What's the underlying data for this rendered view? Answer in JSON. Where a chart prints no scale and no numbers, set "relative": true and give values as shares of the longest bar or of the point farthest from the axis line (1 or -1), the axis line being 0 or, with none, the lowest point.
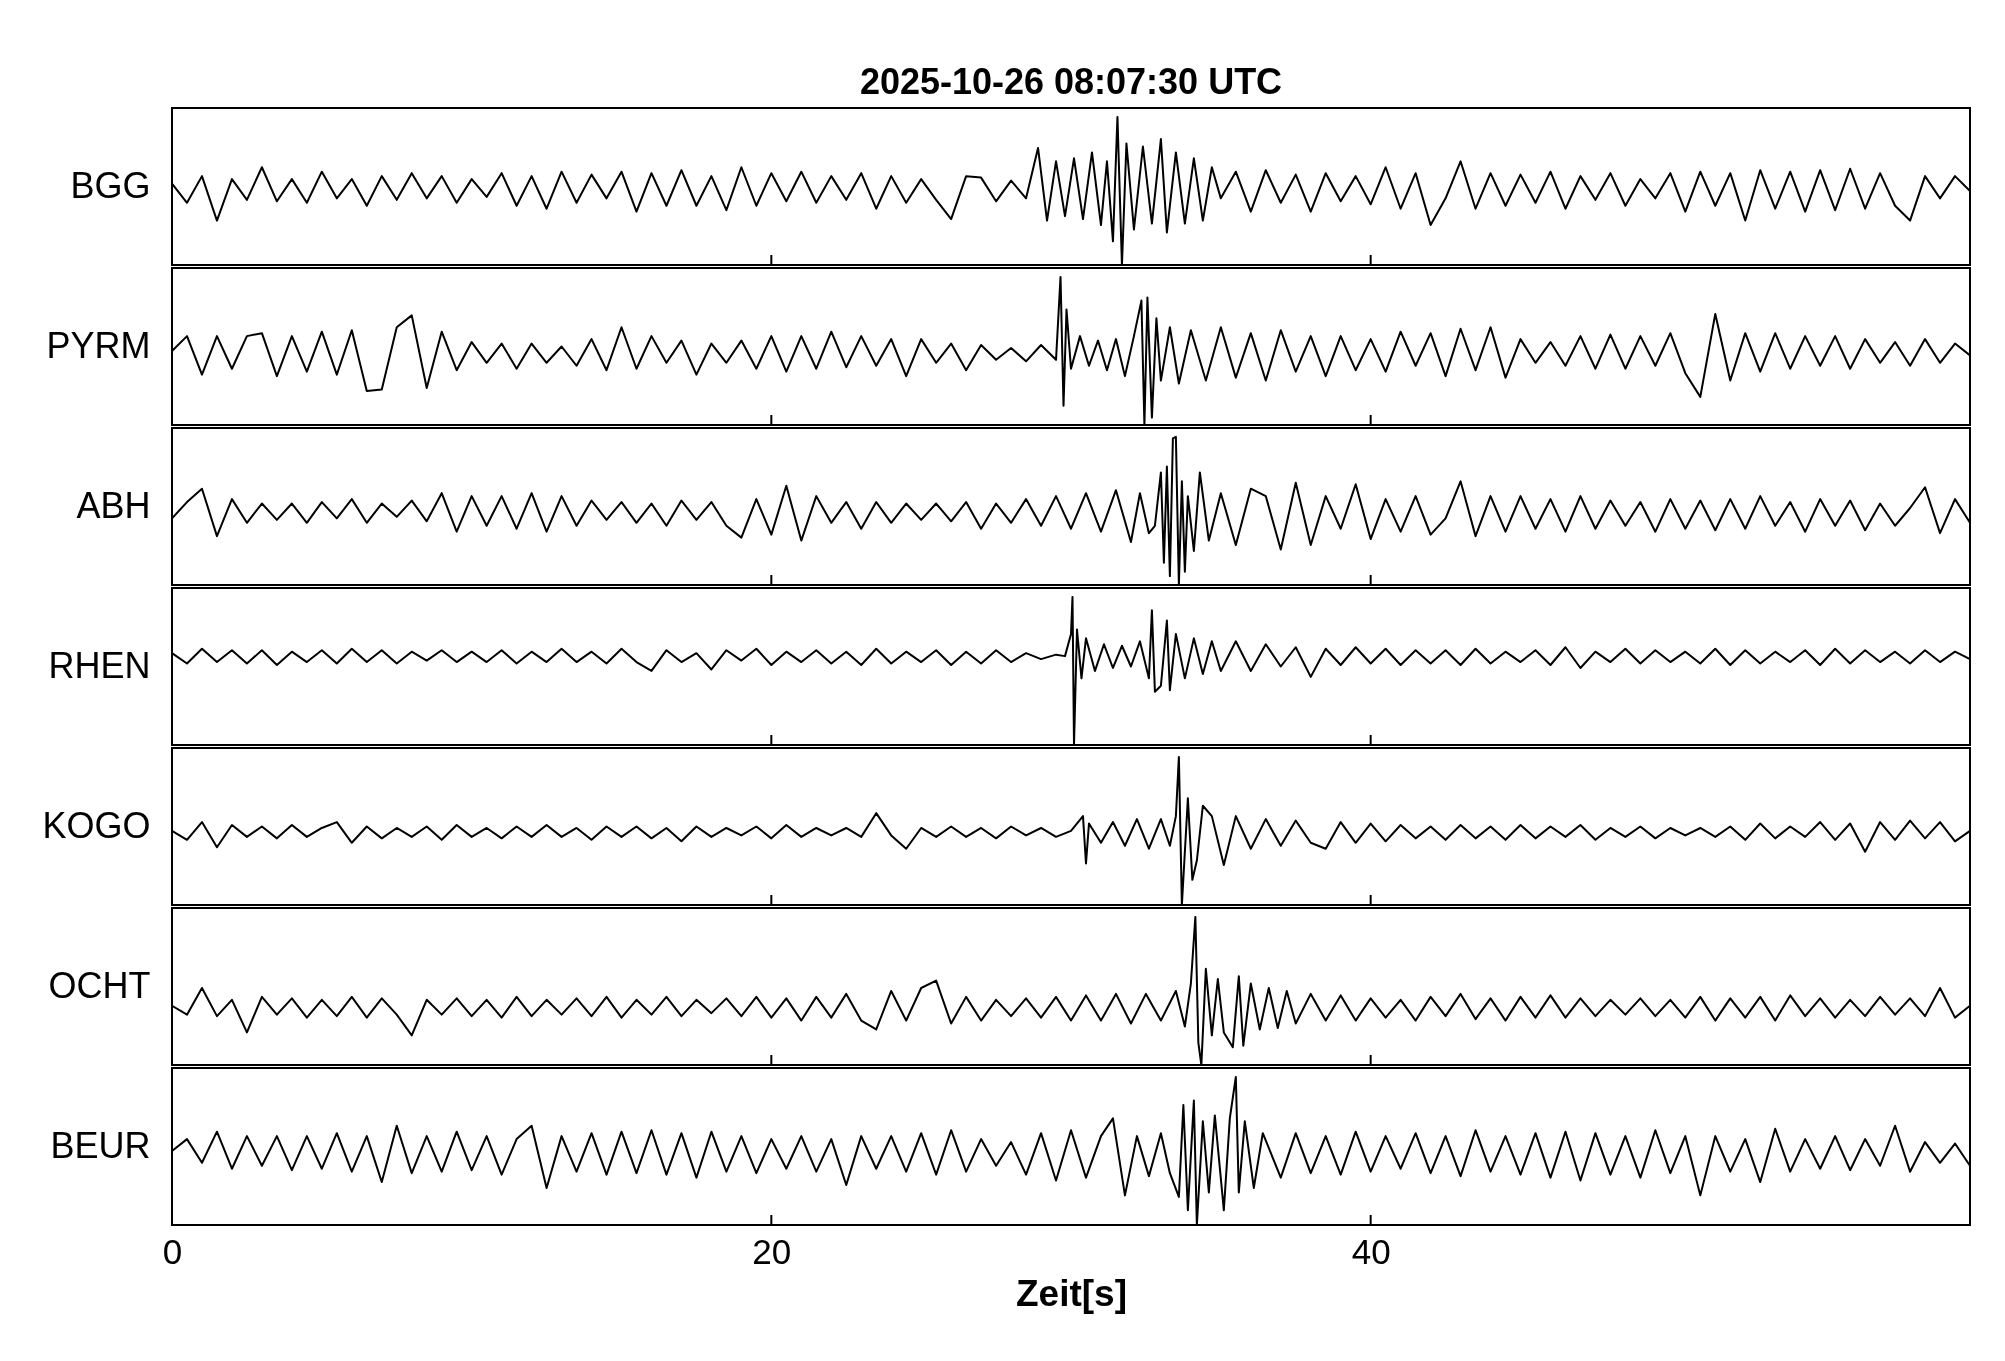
{
  "chart_data": [
    {
      "type": "line",
      "title": "2025-10-26  08:07:30 UTC",
      "ylabel": "BGG",
      "relative": true,
      "color": "#000000",
      "xlim": [
        0,
        60
      ],
      "xticks": [
        0,
        20,
        40
      ],
      "tick_labels": false,
      "x": [
        0,
        0.5,
        1,
        1.5,
        2,
        2.5,
        3,
        3.5,
        4,
        4.5,
        5,
        5.5,
        6,
        6.5,
        7,
        7.5,
        8,
        8.5,
        9,
        9.5,
        10,
        10.5,
        11,
        11.5,
        12,
        12.5,
        13,
        13.5,
        14,
        14.5,
        15,
        15.5,
        16,
        16.5,
        17,
        17.5,
        18,
        18.5,
        19,
        19.5,
        20,
        20.5,
        21,
        21.5,
        22,
        22.5,
        23,
        23.5,
        24,
        24.5,
        25,
        25.5,
        26,
        26.5,
        27,
        27.5,
        28,
        28.5,
        28.9,
        29.2,
        29.5,
        29.8,
        30.1,
        30.4,
        30.7,
        31,
        31.2,
        31.4,
        31.55,
        31.7,
        31.85,
        32.1,
        32.4,
        32.7,
        33,
        33.2,
        33.5,
        33.8,
        34.1,
        34.4,
        34.7,
        35,
        35.5,
        36,
        36.5,
        37,
        37.5,
        38,
        38.5,
        39,
        39.5,
        40,
        40.5,
        41,
        41.5,
        42,
        42.5,
        43,
        43.5,
        44,
        44.5,
        45,
        45.5,
        46,
        46.5,
        47,
        47.5,
        48,
        48.5,
        49,
        49.5,
        50,
        50.5,
        51,
        51.5,
        52,
        52.5,
        53,
        53.5,
        54,
        54.5,
        55,
        55.5,
        56,
        56.5,
        57,
        57.5,
        58,
        58.5,
        59,
        59.5,
        60
      ],
      "values": [
        0.55,
        0.42,
        0.6,
        0.3,
        0.58,
        0.44,
        0.66,
        0.43,
        0.58,
        0.42,
        0.63,
        0.45,
        0.58,
        0.4,
        0.6,
        0.44,
        0.62,
        0.45,
        0.6,
        0.42,
        0.58,
        0.46,
        0.62,
        0.4,
        0.6,
        0.38,
        0.63,
        0.42,
        0.61,
        0.45,
        0.63,
        0.36,
        0.62,
        0.4,
        0.64,
        0.4,
        0.6,
        0.37,
        0.66,
        0.4,
        0.62,
        0.43,
        0.63,
        0.42,
        0.6,
        0.44,
        0.62,
        0.38,
        0.6,
        0.42,
        0.58,
        0.44,
        0.31,
        0.6,
        0.59,
        0.43,
        0.57,
        0.45,
        0.79,
        0.3,
        0.7,
        0.33,
        0.72,
        0.31,
        0.76,
        0.27,
        0.7,
        0.16,
        1.0,
        0.0,
        0.82,
        0.24,
        0.8,
        0.28,
        0.85,
        0.22,
        0.76,
        0.28,
        0.72,
        0.3,
        0.66,
        0.45,
        0.63,
        0.36,
        0.64,
        0.42,
        0.61,
        0.36,
        0.62,
        0.43,
        0.6,
        0.41,
        0.66,
        0.38,
        0.62,
        0.27,
        0.45,
        0.7,
        0.38,
        0.62,
        0.4,
        0.61,
        0.42,
        0.63,
        0.38,
        0.6,
        0.44,
        0.62,
        0.4,
        0.58,
        0.45,
        0.62,
        0.36,
        0.63,
        0.4,
        0.62,
        0.3,
        0.64,
        0.38,
        0.63,
        0.36,
        0.64,
        0.37,
        0.65,
        0.38,
        0.62,
        0.4,
        0.3,
        0.6,
        0.45,
        0.6,
        0.5
      ]
    },
    {
      "type": "line",
      "ylabel": "PYRM",
      "relative": true,
      "color": "#000000",
      "xlim": [
        0,
        60
      ],
      "xticks": [
        0,
        20,
        40
      ],
      "tick_labels": false,
      "x": [
        0,
        0.5,
        1,
        1.5,
        2,
        2.5,
        3,
        3.5,
        4,
        4.5,
        5,
        5.5,
        6,
        6.5,
        7,
        7.5,
        8,
        8.5,
        9,
        9.5,
        10,
        10.5,
        11,
        11.5,
        12,
        12.5,
        13,
        13.5,
        14,
        14.5,
        15,
        15.5,
        16,
        16.5,
        17,
        17.5,
        18,
        18.5,
        19,
        19.5,
        20,
        20.5,
        21,
        21.5,
        22,
        22.5,
        23,
        23.5,
        24,
        24.5,
        25,
        25.5,
        26,
        26.5,
        27,
        27.5,
        28,
        28.5,
        29,
        29.5,
        29.65,
        29.75,
        29.85,
        30,
        30.3,
        30.6,
        30.9,
        31.2,
        31.5,
        31.8,
        32.1,
        32.35,
        32.45,
        32.55,
        32.7,
        32.85,
        33,
        33.3,
        33.6,
        34,
        34.5,
        35,
        35.5,
        36,
        36.5,
        37,
        37.5,
        38,
        38.5,
        39,
        39.5,
        40,
        40.5,
        41,
        41.5,
        42,
        42.5,
        43,
        43.5,
        44,
        44.5,
        45,
        45.5,
        46,
        46.5,
        47,
        47.5,
        48,
        48.5,
        49,
        49.5,
        50,
        50.5,
        51,
        51.5,
        52,
        52.5,
        53,
        53.5,
        54,
        54.5,
        55,
        55.5,
        56,
        56.5,
        57,
        57.5,
        58,
        58.5,
        59,
        59.5,
        60
      ],
      "values": [
        0.5,
        0.6,
        0.34,
        0.6,
        0.38,
        0.6,
        0.62,
        0.33,
        0.6,
        0.36,
        0.63,
        0.34,
        0.64,
        0.23,
        0.24,
        0.66,
        0.74,
        0.25,
        0.63,
        0.37,
        0.56,
        0.42,
        0.55,
        0.38,
        0.55,
        0.42,
        0.53,
        0.4,
        0.58,
        0.37,
        0.66,
        0.38,
        0.6,
        0.42,
        0.57,
        0.34,
        0.55,
        0.42,
        0.57,
        0.38,
        0.6,
        0.36,
        0.6,
        0.38,
        0.63,
        0.39,
        0.6,
        0.4,
        0.58,
        0.33,
        0.58,
        0.42,
        0.55,
        0.37,
        0.54,
        0.44,
        0.52,
        0.43,
        0.54,
        0.44,
        1.0,
        0.13,
        0.78,
        0.38,
        0.6,
        0.4,
        0.57,
        0.37,
        0.58,
        0.33,
        0.6,
        0.84,
        0.0,
        0.86,
        0.05,
        0.72,
        0.3,
        0.66,
        0.28,
        0.64,
        0.3,
        0.66,
        0.32,
        0.62,
        0.3,
        0.64,
        0.36,
        0.6,
        0.33,
        0.6,
        0.37,
        0.58,
        0.36,
        0.63,
        0.4,
        0.62,
        0.33,
        0.65,
        0.37,
        0.66,
        0.32,
        0.58,
        0.42,
        0.56,
        0.4,
        0.6,
        0.38,
        0.61,
        0.38,
        0.6,
        0.4,
        0.62,
        0.35,
        0.19,
        0.75,
        0.3,
        0.62,
        0.36,
        0.62,
        0.38,
        0.6,
        0.4,
        0.6,
        0.38,
        0.58,
        0.42,
        0.56,
        0.4,
        0.58,
        0.42,
        0.55,
        0.47
      ]
    },
    {
      "type": "line",
      "ylabel": "ABH",
      "relative": true,
      "color": "#000000",
      "xlim": [
        0,
        60
      ],
      "xticks": [
        0,
        20,
        40
      ],
      "tick_labels": false,
      "x": [
        0,
        0.5,
        1,
        1.5,
        2,
        2.5,
        3,
        3.5,
        4,
        4.5,
        5,
        5.5,
        6,
        6.5,
        7,
        7.5,
        8,
        8.5,
        9,
        9.5,
        10,
        10.5,
        11,
        11.5,
        12,
        12.5,
        13,
        13.5,
        14,
        14.5,
        15,
        15.5,
        16,
        16.5,
        17,
        17.5,
        18,
        18.5,
        19,
        19.5,
        20,
        20.5,
        21,
        21.5,
        22,
        22.5,
        23,
        23.5,
        24,
        24.5,
        25,
        25.5,
        26,
        26.5,
        27,
        27.5,
        28,
        28.5,
        29,
        29.5,
        30,
        30.5,
        31,
        31.5,
        32,
        32.3,
        32.6,
        32.8,
        33,
        33.1,
        33.2,
        33.3,
        33.4,
        33.5,
        33.6,
        33.7,
        33.8,
        33.9,
        34.1,
        34.3,
        34.6,
        35,
        35.5,
        36,
        36.5,
        37,
        37.5,
        38,
        38.5,
        39,
        39.5,
        40,
        40.5,
        41,
        41.5,
        42,
        42.5,
        43,
        43.5,
        44,
        44.5,
        45,
        45.5,
        46,
        46.5,
        47,
        47.5,
        48,
        48.5,
        49,
        49.5,
        50,
        50.5,
        51,
        51.5,
        52,
        52.5,
        53,
        53.5,
        54,
        54.5,
        55,
        55.5,
        56,
        56.5,
        57,
        57.5,
        58,
        58.5,
        59,
        59.5,
        60
      ],
      "values": [
        0.45,
        0.56,
        0.65,
        0.33,
        0.58,
        0.42,
        0.55,
        0.44,
        0.55,
        0.42,
        0.56,
        0.45,
        0.58,
        0.42,
        0.55,
        0.46,
        0.57,
        0.43,
        0.62,
        0.36,
        0.6,
        0.4,
        0.6,
        0.38,
        0.62,
        0.36,
        0.6,
        0.4,
        0.57,
        0.44,
        0.56,
        0.42,
        0.55,
        0.4,
        0.57,
        0.44,
        0.56,
        0.4,
        0.32,
        0.58,
        0.34,
        0.67,
        0.3,
        0.6,
        0.42,
        0.56,
        0.38,
        0.56,
        0.42,
        0.55,
        0.44,
        0.55,
        0.43,
        0.56,
        0.38,
        0.55,
        0.42,
        0.58,
        0.4,
        0.6,
        0.38,
        0.62,
        0.36,
        0.64,
        0.29,
        0.62,
        0.35,
        0.4,
        0.76,
        0.15,
        0.8,
        0.06,
        0.99,
        1.0,
        0.0,
        0.7,
        0.09,
        0.6,
        0.23,
        0.76,
        0.3,
        0.62,
        0.27,
        0.65,
        0.6,
        0.24,
        0.69,
        0.27,
        0.6,
        0.38,
        0.68,
        0.31,
        0.58,
        0.36,
        0.6,
        0.34,
        0.45,
        0.7,
        0.33,
        0.6,
        0.36,
        0.6,
        0.38,
        0.58,
        0.36,
        0.6,
        0.38,
        0.57,
        0.4,
        0.56,
        0.36,
        0.58,
        0.38,
        0.57,
        0.37,
        0.58,
        0.38,
        0.6,
        0.4,
        0.56,
        0.36,
        0.58,
        0.4,
        0.57,
        0.37,
        0.55,
        0.4,
        0.52,
        0.66,
        0.35,
        0.58,
        0.42
      ]
    },
    {
      "type": "line",
      "ylabel": "RHEN",
      "relative": true,
      "color": "#000000",
      "xlim": [
        0,
        60
      ],
      "xticks": [
        0,
        20,
        40
      ],
      "tick_labels": false,
      "x": [
        0,
        0.5,
        1,
        1.5,
        2,
        2.5,
        3,
        3.5,
        4,
        4.5,
        5,
        5.5,
        6,
        6.5,
        7,
        7.5,
        8,
        8.5,
        9,
        9.5,
        10,
        10.5,
        11,
        11.5,
        12,
        12.5,
        13,
        13.5,
        14,
        14.5,
        15,
        15.5,
        16,
        16.5,
        17,
        17.5,
        18,
        18.5,
        19,
        19.5,
        20,
        20.5,
        21,
        21.5,
        22,
        22.5,
        23,
        23.5,
        24,
        24.5,
        25,
        25.5,
        26,
        26.5,
        27,
        27.5,
        28,
        28.5,
        29,
        29.5,
        29.8,
        30,
        30.05,
        30.1,
        30.2,
        30.35,
        30.5,
        30.8,
        31.1,
        31.4,
        31.7,
        32,
        32.3,
        32.6,
        32.7,
        32.8,
        33,
        33.2,
        33.3,
        33.5,
        33.8,
        34.1,
        34.4,
        34.7,
        35,
        35.5,
        36,
        36.5,
        37,
        37.5,
        38,
        38.5,
        39,
        39.5,
        40,
        40.5,
        41,
        41.5,
        42,
        42.5,
        43,
        43.5,
        44,
        44.5,
        45,
        45.5,
        46,
        46.5,
        47,
        47.5,
        48,
        48.5,
        49,
        49.5,
        50,
        50.5,
        51,
        51.5,
        52,
        52.5,
        53,
        53.5,
        54,
        54.5,
        55,
        55.5,
        56,
        56.5,
        57,
        57.5,
        58,
        58.5,
        59,
        59.5,
        60
      ],
      "values": [
        0.62,
        0.55,
        0.65,
        0.56,
        0.64,
        0.55,
        0.64,
        0.54,
        0.63,
        0.56,
        0.64,
        0.55,
        0.65,
        0.56,
        0.64,
        0.55,
        0.63,
        0.57,
        0.64,
        0.56,
        0.63,
        0.56,
        0.64,
        0.55,
        0.63,
        0.56,
        0.65,
        0.56,
        0.63,
        0.55,
        0.65,
        0.56,
        0.5,
        0.64,
        0.56,
        0.62,
        0.51,
        0.64,
        0.57,
        0.65,
        0.54,
        0.63,
        0.56,
        0.64,
        0.55,
        0.63,
        0.54,
        0.65,
        0.55,
        0.63,
        0.56,
        0.64,
        0.54,
        0.63,
        0.55,
        0.64,
        0.56,
        0.62,
        0.58,
        0.61,
        0.6,
        0.75,
        1.0,
        0.0,
        0.78,
        0.45,
        0.72,
        0.5,
        0.68,
        0.52,
        0.67,
        0.53,
        0.7,
        0.45,
        0.91,
        0.36,
        0.4,
        0.84,
        0.37,
        0.75,
        0.45,
        0.72,
        0.48,
        0.7,
        0.5,
        0.7,
        0.5,
        0.68,
        0.53,
        0.66,
        0.46,
        0.65,
        0.54,
        0.66,
        0.55,
        0.65,
        0.54,
        0.64,
        0.55,
        0.64,
        0.54,
        0.65,
        0.55,
        0.63,
        0.56,
        0.64,
        0.54,
        0.66,
        0.52,
        0.63,
        0.56,
        0.65,
        0.55,
        0.64,
        0.56,
        0.63,
        0.55,
        0.65,
        0.54,
        0.64,
        0.55,
        0.63,
        0.56,
        0.64,
        0.54,
        0.65,
        0.55,
        0.64,
        0.56,
        0.63,
        0.55,
        0.64,
        0.56,
        0.63,
        0.58
      ]
    },
    {
      "type": "line",
      "ylabel": "KOGO",
      "relative": true,
      "color": "#000000",
      "xlim": [
        0,
        60
      ],
      "xticks": [
        0,
        20,
        40
      ],
      "tick_labels": false,
      "x": [
        0,
        0.5,
        1,
        1.5,
        2,
        2.5,
        3,
        3.5,
        4,
        4.5,
        5,
        5.5,
        6,
        6.5,
        7,
        7.5,
        8,
        8.5,
        9,
        9.5,
        10,
        10.5,
        11,
        11.5,
        12,
        12.5,
        13,
        13.5,
        14,
        14.5,
        15,
        15.5,
        16,
        16.5,
        17,
        17.5,
        18,
        18.5,
        19,
        19.5,
        20,
        20.5,
        21,
        21.5,
        22,
        22.5,
        23,
        23.5,
        24,
        24.5,
        25,
        25.5,
        26,
        26.5,
        27,
        27.5,
        28,
        28.5,
        29,
        29.5,
        30,
        30.4,
        30.5,
        30.6,
        31,
        31.4,
        31.8,
        32.2,
        32.6,
        33,
        33.3,
        33.5,
        33.6,
        33.7,
        33.9,
        34.05,
        34.2,
        34.4,
        34.7,
        35.1,
        35.5,
        36,
        36.5,
        37,
        37.5,
        38,
        38.5,
        39,
        39.5,
        40,
        40.5,
        41,
        41.5,
        42,
        42.5,
        43,
        43.5,
        44,
        44.5,
        45,
        45.5,
        46,
        46.5,
        47,
        47.5,
        48,
        48.5,
        49,
        49.5,
        50,
        50.5,
        51,
        51.5,
        52,
        52.5,
        53,
        53.5,
        54,
        54.5,
        55,
        55.5,
        56,
        56.5,
        57,
        57.5,
        58,
        58.5,
        59,
        59.5,
        60
      ],
      "values": [
        0.5,
        0.44,
        0.56,
        0.39,
        0.54,
        0.46,
        0.53,
        0.45,
        0.54,
        0.46,
        0.52,
        0.56,
        0.42,
        0.53,
        0.45,
        0.52,
        0.46,
        0.53,
        0.44,
        0.54,
        0.46,
        0.52,
        0.45,
        0.53,
        0.46,
        0.54,
        0.46,
        0.52,
        0.44,
        0.53,
        0.46,
        0.53,
        0.45,
        0.52,
        0.43,
        0.53,
        0.46,
        0.52,
        0.47,
        0.53,
        0.45,
        0.54,
        0.46,
        0.52,
        0.47,
        0.52,
        0.46,
        0.62,
        0.47,
        0.38,
        0.52,
        0.46,
        0.53,
        0.46,
        0.52,
        0.45,
        0.53,
        0.47,
        0.52,
        0.46,
        0.5,
        0.6,
        0.28,
        0.55,
        0.42,
        0.56,
        0.4,
        0.58,
        0.38,
        0.58,
        0.4,
        0.6,
        1.0,
        0.0,
        0.72,
        0.17,
        0.3,
        0.67,
        0.6,
        0.27,
        0.6,
        0.38,
        0.58,
        0.4,
        0.57,
        0.42,
        0.38,
        0.56,
        0.42,
        0.55,
        0.43,
        0.54,
        0.45,
        0.53,
        0.44,
        0.54,
        0.45,
        0.53,
        0.44,
        0.54,
        0.45,
        0.53,
        0.46,
        0.54,
        0.44,
        0.52,
        0.46,
        0.53,
        0.45,
        0.52,
        0.47,
        0.52,
        0.46,
        0.53,
        0.44,
        0.55,
        0.45,
        0.53,
        0.46,
        0.56,
        0.44,
        0.55,
        0.36,
        0.56,
        0.44,
        0.57,
        0.45,
        0.56,
        0.43,
        0.5
      ]
    },
    {
      "type": "line",
      "ylabel": "OCHT",
      "relative": true,
      "color": "#000000",
      "xlim": [
        0,
        60
      ],
      "xticks": [
        0,
        20,
        40
      ],
      "tick_labels": false,
      "x": [
        0,
        0.5,
        1,
        1.5,
        2,
        2.5,
        3,
        3.5,
        4,
        4.5,
        5,
        5.5,
        6,
        6.5,
        7,
        7.5,
        8,
        8.5,
        9,
        9.5,
        10,
        10.5,
        11,
        11.5,
        12,
        12.5,
        13,
        13.5,
        14,
        14.5,
        15,
        15.5,
        16,
        16.5,
        17,
        17.5,
        18,
        18.5,
        19,
        19.5,
        20,
        20.5,
        21,
        21.5,
        22,
        22.5,
        23,
        23.5,
        24,
        24.5,
        25,
        25.5,
        26,
        26.5,
        27,
        27.5,
        28,
        28.5,
        29,
        29.5,
        30,
        30.5,
        31,
        31.5,
        32,
        32.5,
        33,
        33.5,
        33.8,
        34,
        34.15,
        34.25,
        34.35,
        34.5,
        34.7,
        34.9,
        35.1,
        35.4,
        35.6,
        35.75,
        36,
        36.3,
        36.6,
        36.9,
        37.2,
        37.5,
        38,
        38.5,
        39,
        39.5,
        40,
        40.5,
        41,
        41.5,
        42,
        42.5,
        43,
        43.5,
        44,
        44.5,
        45,
        45.5,
        46,
        46.5,
        47,
        47.5,
        48,
        48.5,
        49,
        49.5,
        50,
        50.5,
        51,
        51.5,
        52,
        52.5,
        53,
        53.5,
        54,
        54.5,
        55,
        55.5,
        56,
        56.5,
        57,
        57.5,
        58,
        58.5,
        59,
        59.5,
        60
      ],
      "values": [
        0.4,
        0.34,
        0.52,
        0.33,
        0.44,
        0.22,
        0.46,
        0.34,
        0.45,
        0.32,
        0.44,
        0.33,
        0.46,
        0.32,
        0.45,
        0.34,
        0.2,
        0.44,
        0.34,
        0.45,
        0.33,
        0.44,
        0.32,
        0.46,
        0.33,
        0.44,
        0.34,
        0.45,
        0.33,
        0.46,
        0.32,
        0.44,
        0.34,
        0.46,
        0.33,
        0.44,
        0.35,
        0.45,
        0.33,
        0.46,
        0.32,
        0.45,
        0.3,
        0.46,
        0.32,
        0.48,
        0.3,
        0.24,
        0.5,
        0.3,
        0.52,
        0.57,
        0.28,
        0.46,
        0.3,
        0.44,
        0.33,
        0.45,
        0.32,
        0.46,
        0.3,
        0.47,
        0.3,
        0.48,
        0.28,
        0.48,
        0.3,
        0.5,
        0.26,
        0.55,
        1.0,
        0.15,
        0.0,
        0.65,
        0.2,
        0.58,
        0.22,
        0.12,
        0.6,
        0.13,
        0.55,
        0.24,
        0.52,
        0.25,
        0.5,
        0.28,
        0.48,
        0.3,
        0.47,
        0.3,
        0.45,
        0.32,
        0.44,
        0.3,
        0.46,
        0.33,
        0.48,
        0.31,
        0.45,
        0.3,
        0.46,
        0.32,
        0.47,
        0.32,
        0.45,
        0.33,
        0.44,
        0.34,
        0.45,
        0.33,
        0.44,
        0.32,
        0.46,
        0.3,
        0.45,
        0.32,
        0.46,
        0.3,
        0.47,
        0.33,
        0.45,
        0.32,
        0.44,
        0.33,
        0.46,
        0.34,
        0.45,
        0.33,
        0.52,
        0.32,
        0.4
      ]
    },
    {
      "type": "line",
      "ylabel": "BEUR",
      "xlabel": "Zeit[s]",
      "relative": true,
      "color": "#000000",
      "xlim": [
        0,
        60
      ],
      "xticks": [
        0,
        20,
        40
      ],
      "tick_labels": "x",
      "x": [
        0,
        0.5,
        1,
        1.5,
        2,
        2.5,
        3,
        3.5,
        4,
        4.5,
        5,
        5.5,
        6,
        6.5,
        7,
        7.5,
        8,
        8.5,
        9,
        9.5,
        10,
        10.5,
        11,
        11.5,
        12,
        12.5,
        13,
        13.5,
        14,
        14.5,
        15,
        15.5,
        16,
        16.5,
        17,
        17.5,
        18,
        18.5,
        19,
        19.5,
        20,
        20.5,
        21,
        21.5,
        22,
        22.5,
        23,
        23.5,
        24,
        24.5,
        25,
        25.5,
        26,
        26.5,
        27,
        27.5,
        28,
        28.5,
        29,
        29.5,
        30,
        30.5,
        31,
        31.4,
        31.8,
        32.2,
        32.6,
        33,
        33.3,
        33.6,
        33.75,
        33.9,
        34.1,
        34.2,
        34.4,
        34.6,
        34.8,
        35.1,
        35.3,
        35.5,
        35.6,
        35.8,
        36.1,
        36.4,
        37,
        37.5,
        38,
        38.5,
        39,
        39.5,
        40,
        40.5,
        41,
        41.5,
        42,
        42.5,
        43,
        43.5,
        44,
        44.5,
        45,
        45.5,
        46,
        46.5,
        47,
        47.5,
        48,
        48.5,
        49,
        49.5,
        50,
        50.5,
        51,
        51.5,
        52,
        52.5,
        53,
        53.5,
        54,
        54.5,
        55,
        55.5,
        56,
        56.5,
        57,
        57.5,
        58,
        58.5,
        59,
        59.5,
        60
      ],
      "values": [
        0.5,
        0.58,
        0.42,
        0.63,
        0.38,
        0.6,
        0.4,
        0.6,
        0.37,
        0.6,
        0.38,
        0.62,
        0.36,
        0.6,
        0.29,
        0.67,
        0.35,
        0.6,
        0.36,
        0.63,
        0.37,
        0.6,
        0.34,
        0.58,
        0.67,
        0.25,
        0.6,
        0.36,
        0.62,
        0.34,
        0.63,
        0.35,
        0.64,
        0.34,
        0.62,
        0.32,
        0.63,
        0.36,
        0.6,
        0.35,
        0.58,
        0.38,
        0.6,
        0.36,
        0.58,
        0.27,
        0.6,
        0.38,
        0.6,
        0.36,
        0.62,
        0.34,
        0.64,
        0.36,
        0.58,
        0.4,
        0.56,
        0.34,
        0.62,
        0.3,
        0.64,
        0.32,
        0.6,
        0.72,
        0.2,
        0.6,
        0.33,
        0.62,
        0.35,
        0.19,
        0.81,
        0.1,
        0.84,
        0.0,
        0.7,
        0.22,
        0.74,
        0.1,
        0.72,
        1.0,
        0.22,
        0.7,
        0.25,
        0.62,
        0.32,
        0.62,
        0.35,
        0.6,
        0.34,
        0.63,
        0.36,
        0.6,
        0.38,
        0.62,
        0.35,
        0.6,
        0.33,
        0.64,
        0.36,
        0.6,
        0.34,
        0.62,
        0.32,
        0.63,
        0.3,
        0.62,
        0.34,
        0.6,
        0.32,
        0.64,
        0.35,
        0.6,
        0.2,
        0.6,
        0.36,
        0.58,
        0.29,
        0.65,
        0.36,
        0.58,
        0.38,
        0.6,
        0.37,
        0.58,
        0.4,
        0.67,
        0.36,
        0.56,
        0.42,
        0.55,
        0.4
      ]
    }
  ]
}
